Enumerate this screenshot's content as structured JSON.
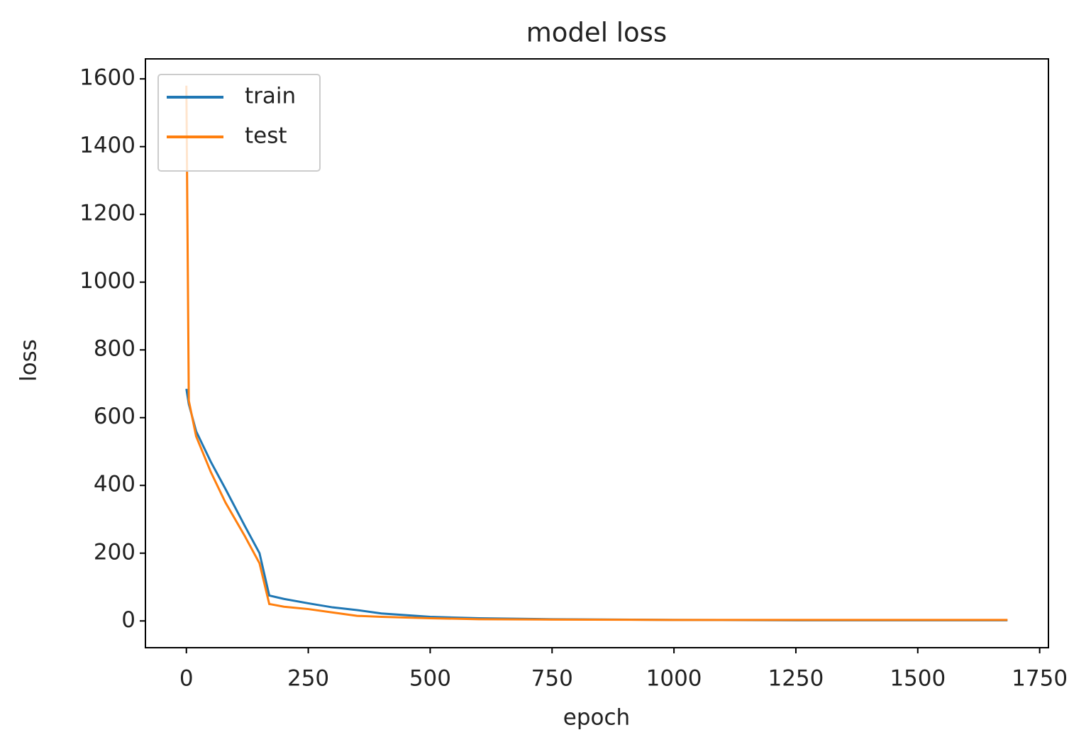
{
  "chart_data": {
    "type": "line",
    "title": "model loss",
    "xlabel": "epoch",
    "ylabel": "loss",
    "x": [
      0,
      5,
      20,
      50,
      80,
      120,
      150,
      170,
      200,
      250,
      300,
      350,
      400,
      500,
      600,
      750,
      1000,
      1250,
      1500,
      1684
    ],
    "series": [
      {
        "name": "train",
        "color": "#1f77b4",
        "values": [
          685,
          640,
          560,
          470,
          390,
          280,
          200,
          75,
          65,
          52,
          40,
          32,
          22,
          12,
          8,
          5,
          3,
          2,
          2,
          2
        ]
      },
      {
        "name": "test",
        "color": "#ff7f0e",
        "values": [
          1580,
          650,
          545,
          440,
          350,
          250,
          170,
          50,
          42,
          35,
          25,
          15,
          12,
          8,
          5,
          4,
          3,
          3,
          3,
          3
        ]
      }
    ],
    "xlim": [
      -84,
      1768
    ],
    "ylim": [
      -79,
      1659
    ],
    "xticks": [
      0,
      250,
      500,
      750,
      1000,
      1250,
      1500,
      1750
    ],
    "yticks": [
      0,
      200,
      400,
      600,
      800,
      1000,
      1200,
      1400,
      1600
    ],
    "legend": "upper left",
    "grid": false
  }
}
